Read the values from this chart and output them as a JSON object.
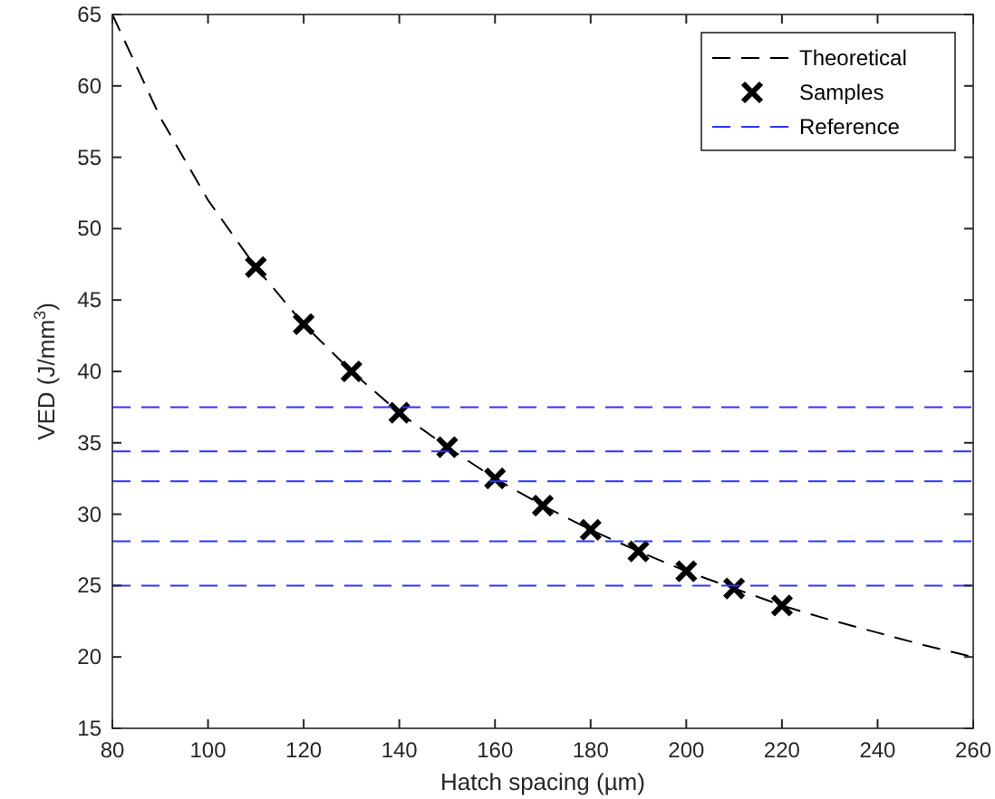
{
  "chart_data": {
    "type": "line",
    "xlabel": "Hatch spacing (µm)",
    "ylabel": "VED (J/mm$^{3}$)",
    "xlim": [
      80,
      260
    ],
    "xticks": [
      80,
      100,
      120,
      140,
      160,
      180,
      200,
      220,
      240,
      260
    ],
    "ylim": [
      15,
      65
    ],
    "yticks": [
      15,
      20,
      25,
      30,
      35,
      40,
      45,
      50,
      55,
      60,
      65
    ],
    "grid": false,
    "legend": "top right",
    "series": [
      {
        "name": "Theoretical",
        "color": "#000000",
        "line_style": "dashed",
        "marker": "none",
        "x": [
          80,
          90,
          100,
          110,
          120,
          130,
          140,
          150,
          160,
          170,
          180,
          190,
          200,
          210,
          220,
          230,
          240,
          250,
          260
        ],
        "values": [
          65,
          57.8,
          52,
          47.3,
          43.3,
          40,
          37.1,
          34.7,
          32.5,
          30.6,
          28.9,
          27.4,
          26,
          24.8,
          23.6,
          22.6,
          21.7,
          20.8,
          20
        ]
      },
      {
        "name": "Samples",
        "type": "scatter",
        "color": "#000000",
        "marker": "cross",
        "x": [
          110,
          120,
          130,
          140,
          150,
          160,
          170,
          180,
          190,
          200,
          210,
          220
        ],
        "values": [
          47.3,
          43.3,
          40,
          37.1,
          34.7,
          32.5,
          30.6,
          28.9,
          27.4,
          26,
          24.8,
          23.6
        ]
      },
      {
        "name": "Reference",
        "type": "line",
        "color": "#3333ff",
        "line_style": "dashed",
        "marker": "none",
        "x": [
          80,
          260
        ],
        "values": [
          37.5,
          37.5
        ]
      },
      {
        "type": "line",
        "color": "#3333ff",
        "line_style": "dashed",
        "marker": "none",
        "x": [
          80,
          260
        ],
        "values": [
          34.4,
          34.4
        ]
      },
      {
        "type": "line",
        "color": "#3333ff",
        "line_style": "dashed",
        "marker": "none",
        "x": [
          80,
          260
        ],
        "values": [
          32.3,
          32.3
        ]
      },
      {
        "type": "line",
        "color": "#3333ff",
        "line_style": "dashed",
        "marker": "none",
        "x": [
          80,
          260
        ],
        "values": [
          28.1,
          28.1
        ]
      },
      {
        "type": "line",
        "color": "#3333ff",
        "line_style": "dashed",
        "marker": "none",
        "x": [
          80,
          260
        ],
        "values": [
          25,
          25
        ]
      }
    ]
  }
}
